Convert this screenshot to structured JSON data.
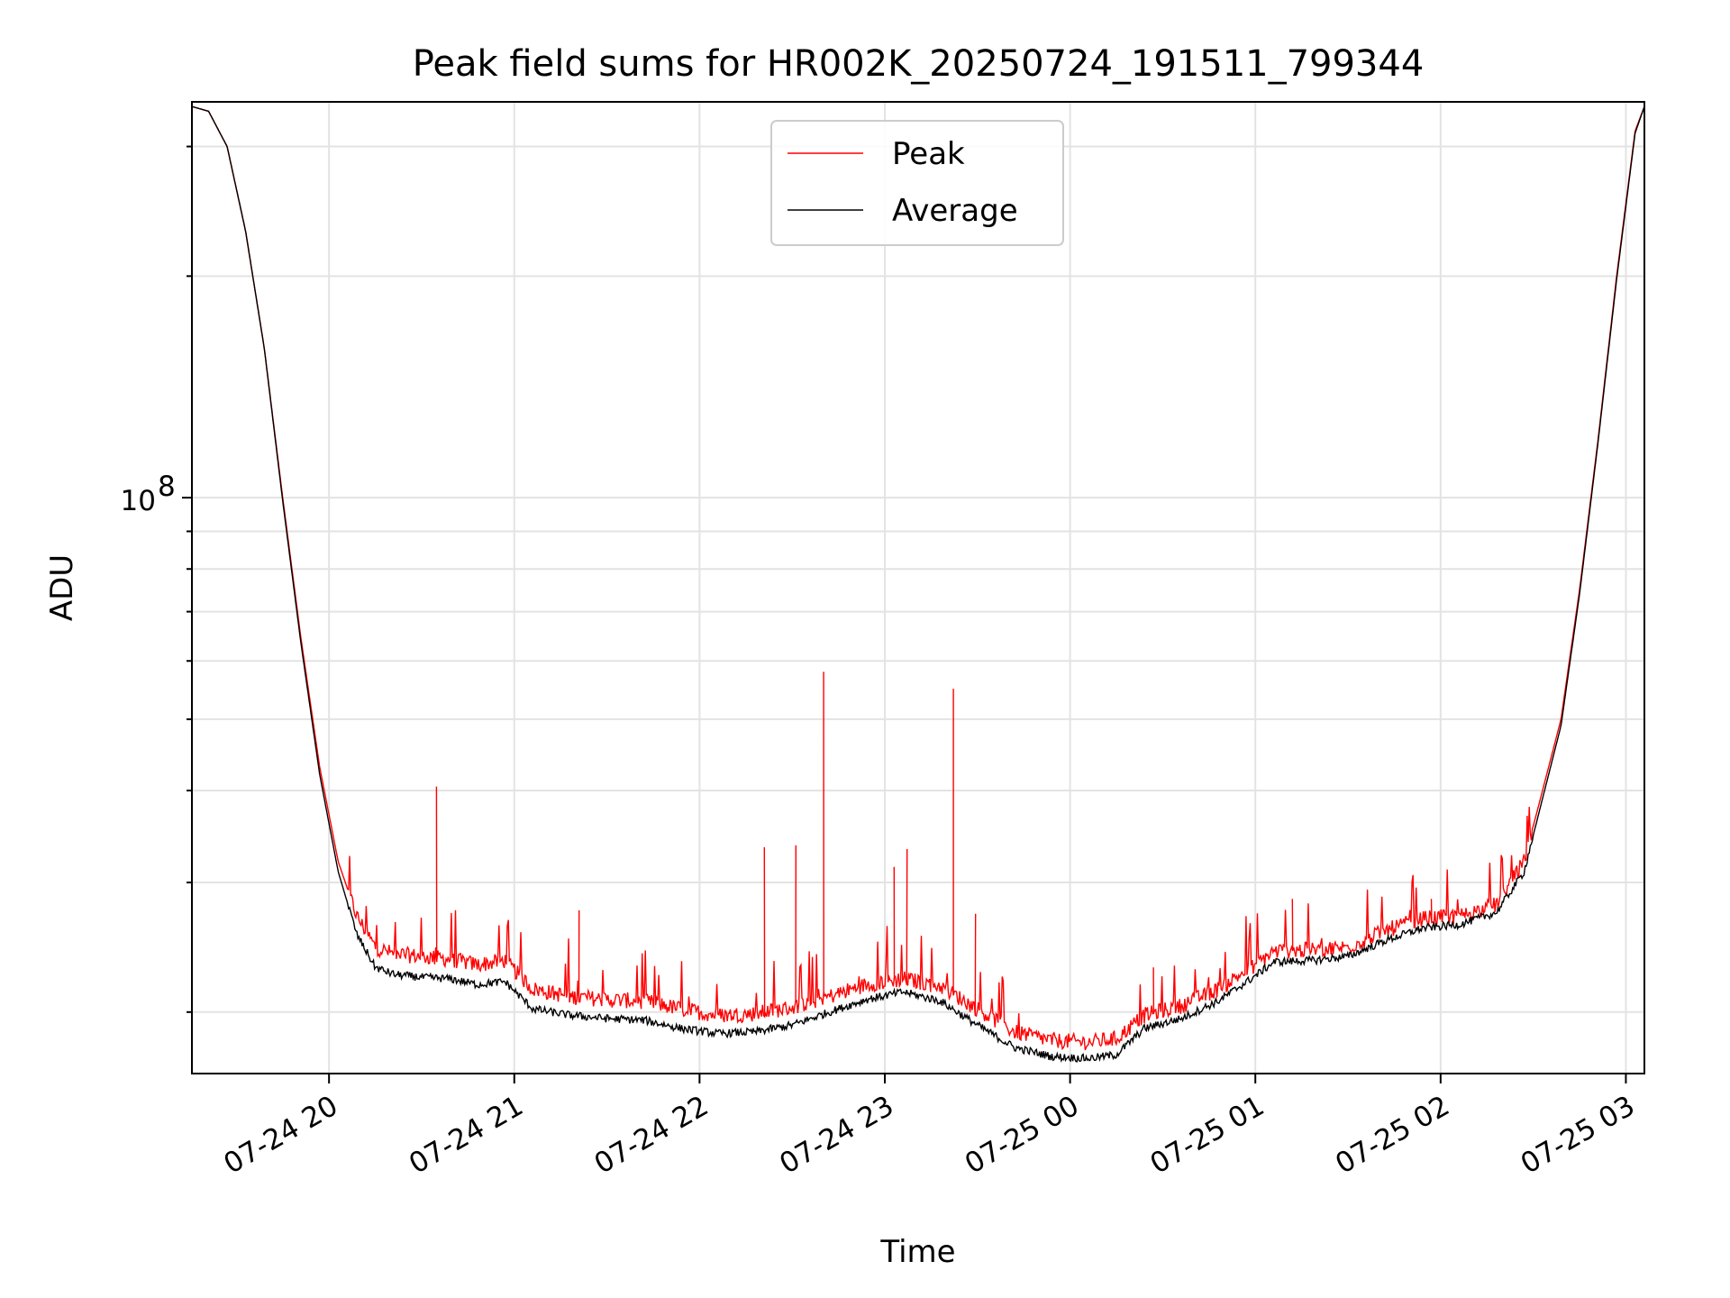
{
  "chart_data": {
    "type": "line",
    "title": "Peak field sums for HR002K_20250724_191511_799344",
    "xlabel": "Time",
    "ylabel": "ADU",
    "y_scale": "log",
    "ylim": [
      16500000,
      345000000
    ],
    "xlim_hours": [
      19.26,
      27.1
    ],
    "x_ticks": [
      {
        "label": "07-24 20",
        "hour": 20
      },
      {
        "label": "07-24 21",
        "hour": 21
      },
      {
        "label": "07-24 22",
        "hour": 22
      },
      {
        "label": "07-24 23",
        "hour": 23
      },
      {
        "label": "07-25 00",
        "hour": 24
      },
      {
        "label": "07-25 01",
        "hour": 25
      },
      {
        "label": "07-25 02",
        "hour": 26
      },
      {
        "label": "07-25 03",
        "hour": 27
      }
    ],
    "y_ticks": [
      {
        "label": "10",
        "exponent": "8",
        "value": 100000000
      }
    ],
    "grid": true,
    "legend": "top-center",
    "series": [
      {
        "name": "Peak",
        "color": "#ff0000",
        "points": [
          [
            19.26,
            340000000
          ],
          [
            19.35,
            335000000
          ],
          [
            19.45,
            300000000
          ],
          [
            19.55,
            230000000
          ],
          [
            19.65,
            160000000
          ],
          [
            19.75,
            100000000
          ],
          [
            19.85,
            64000000
          ],
          [
            19.95,
            43000000
          ],
          [
            20.05,
            32000000
          ],
          [
            20.15,
            27000000
          ],
          [
            20.25,
            24500000
          ],
          [
            20.35,
            24000000
          ],
          [
            20.5,
            23800000
          ],
          [
            20.65,
            23600000
          ],
          [
            20.8,
            23200000
          ],
          [
            20.95,
            23500000
          ],
          [
            21.1,
            21500000
          ],
          [
            21.3,
            21000000
          ],
          [
            21.5,
            20800000
          ],
          [
            21.7,
            20700000
          ],
          [
            21.9,
            20200000
          ],
          [
            22.1,
            19800000
          ],
          [
            22.3,
            19900000
          ],
          [
            22.5,
            20300000
          ],
          [
            22.7,
            21000000
          ],
          [
            22.9,
            21800000
          ],
          [
            23.1,
            22200000
          ],
          [
            23.3,
            21700000
          ],
          [
            23.5,
            20200000
          ],
          [
            23.7,
            18800000
          ],
          [
            23.9,
            18300000
          ],
          [
            24.1,
            18200000
          ],
          [
            24.25,
            18400000
          ],
          [
            24.4,
            19800000
          ],
          [
            24.6,
            20400000
          ],
          [
            24.8,
            21500000
          ],
          [
            25.0,
            23200000
          ],
          [
            25.1,
            24200000
          ],
          [
            25.3,
            24300000
          ],
          [
            25.5,
            24500000
          ],
          [
            25.7,
            25800000
          ],
          [
            25.9,
            26800000
          ],
          [
            26.1,
            27000000
          ],
          [
            26.3,
            28000000
          ],
          [
            26.45,
            32000000
          ],
          [
            26.55,
            40000000
          ],
          [
            26.65,
            50000000
          ],
          [
            26.75,
            75000000
          ],
          [
            26.85,
            120000000
          ],
          [
            26.95,
            200000000
          ],
          [
            27.05,
            315000000
          ],
          [
            27.1,
            340000000
          ]
        ],
        "spikes": [
          [
            20.58,
            40500000
          ],
          [
            21.35,
            27500000
          ],
          [
            22.35,
            33500000
          ],
          [
            22.52,
            33700000
          ],
          [
            22.67,
            58000000
          ],
          [
            23.05,
            31500000
          ],
          [
            23.12,
            33300000
          ],
          [
            23.37,
            55000000
          ],
          [
            23.49,
            27200000
          ],
          [
            24.45,
            23000000
          ],
          [
            25.2,
            28500000
          ],
          [
            25.95,
            28500000
          ]
        ]
      },
      {
        "name": "Average",
        "color": "#000000",
        "points": [
          [
            19.26,
            340000000
          ],
          [
            19.35,
            335000000
          ],
          [
            19.45,
            300000000
          ],
          [
            19.55,
            230000000
          ],
          [
            19.65,
            160000000
          ],
          [
            19.75,
            99000000
          ],
          [
            19.85,
            63000000
          ],
          [
            19.95,
            42000000
          ],
          [
            20.05,
            31000000
          ],
          [
            20.15,
            25500000
          ],
          [
            20.25,
            23000000
          ],
          [
            20.35,
            22500000
          ],
          [
            20.5,
            22300000
          ],
          [
            20.65,
            22200000
          ],
          [
            20.8,
            21800000
          ],
          [
            20.95,
            22000000
          ],
          [
            21.1,
            20200000
          ],
          [
            21.3,
            19800000
          ],
          [
            21.5,
            19600000
          ],
          [
            21.7,
            19500000
          ],
          [
            21.9,
            19000000
          ],
          [
            22.1,
            18700000
          ],
          [
            22.3,
            18800000
          ],
          [
            22.5,
            19200000
          ],
          [
            22.7,
            20000000
          ],
          [
            22.9,
            20800000
          ],
          [
            23.1,
            21300000
          ],
          [
            23.3,
            20700000
          ],
          [
            23.5,
            19200000
          ],
          [
            23.7,
            17900000
          ],
          [
            23.9,
            17400000
          ],
          [
            24.1,
            17300000
          ],
          [
            24.25,
            17500000
          ],
          [
            24.4,
            19000000
          ],
          [
            24.6,
            19600000
          ],
          [
            24.8,
            20700000
          ],
          [
            25.0,
            22400000
          ],
          [
            25.1,
            23400000
          ],
          [
            25.3,
            23500000
          ],
          [
            25.5,
            23800000
          ],
          [
            25.7,
            25000000
          ],
          [
            25.9,
            26000000
          ],
          [
            26.1,
            26300000
          ],
          [
            26.3,
            27300000
          ],
          [
            26.45,
            31000000
          ],
          [
            26.55,
            39000000
          ],
          [
            26.65,
            49000000
          ],
          [
            26.75,
            74000000
          ],
          [
            26.85,
            119000000
          ],
          [
            26.95,
            198000000
          ],
          [
            27.05,
            313000000
          ],
          [
            27.1,
            340000000
          ]
        ]
      }
    ]
  }
}
